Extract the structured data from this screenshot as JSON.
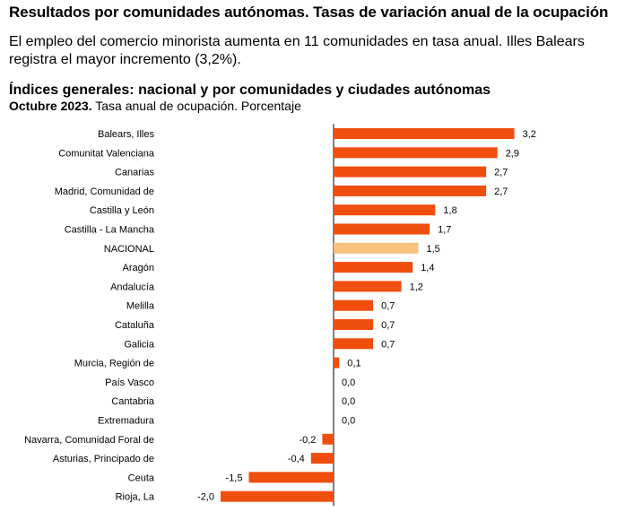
{
  "page": {
    "title": "Resultados por comunidades autónomas. Tasas de variación anual de la ocupación",
    "intro": "El empleo del comercio minorista aumenta en 11 comunidades en tasa anual. Illes Balears registra el mayor incremento (3,2%)."
  },
  "chart_data": {
    "type": "bar",
    "orientation": "horizontal",
    "title": "Índices generales: nacional y por comunidades y ciudades autónomas",
    "subtitle_bold": "Octubre 2023.",
    "subtitle": "Tasa anual de ocupación. Porcentaje",
    "categories": [
      "Balears, Illes",
      "Comunitat Valenciana",
      "Canarias",
      "Madrid, Comunidad de",
      "Castilla y León",
      "Castilla - La Mancha",
      "NACIONAL",
      "Aragón",
      "Andalucía",
      "Melilla",
      "Cataluña",
      "Galicia",
      "Murcia, Región de",
      "País Vasco",
      "Cantabria",
      "Extremadura",
      "Navarra, Comunidad Foral de",
      "Asturias, Principado de",
      "Ceuta",
      "Rioja, La"
    ],
    "values": [
      3.2,
      2.9,
      2.7,
      2.7,
      1.8,
      1.7,
      1.5,
      1.4,
      1.2,
      0.7,
      0.7,
      0.7,
      0.1,
      0.0,
      0.0,
      0.0,
      -0.2,
      -0.4,
      -1.5,
      -2.0
    ],
    "value_labels": [
      "3,2",
      "2,9",
      "2,7",
      "2,7",
      "1,8",
      "1,7",
      "1,5",
      "1,4",
      "1,2",
      "0,7",
      "0,7",
      "0,7",
      "0,1",
      "0,0",
      "0,0",
      "0,0",
      "-0,2",
      "-0,4",
      "-1,5",
      "-2,0"
    ],
    "highlight_category": "NACIONAL",
    "colors": {
      "bar": "#f04e0f",
      "highlight": "#f9c07f",
      "axis": "#000000"
    },
    "grid": false,
    "legend": "none"
  }
}
